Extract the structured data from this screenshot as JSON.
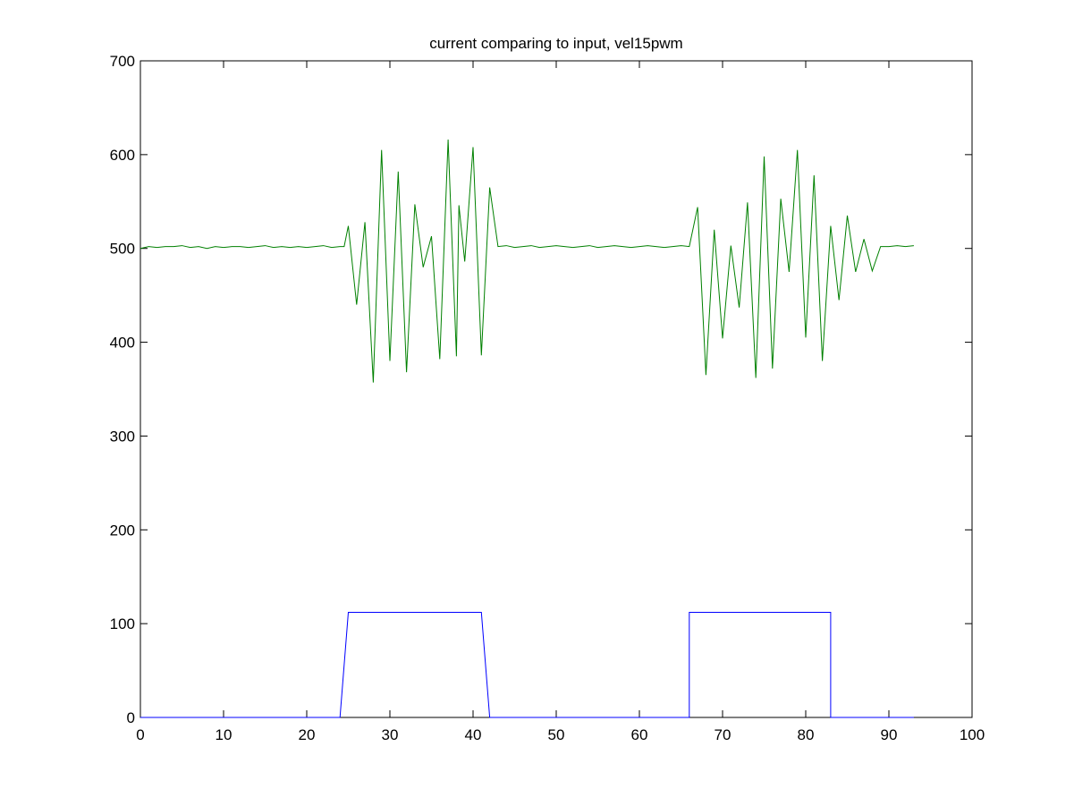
{
  "chart_data": {
    "type": "line",
    "title": "current comparing to input, vel15pwm",
    "xlabel": "",
    "ylabel": "",
    "xlim": [
      0,
      100
    ],
    "ylim": [
      0,
      700
    ],
    "x_ticks": [
      0,
      10,
      20,
      30,
      40,
      50,
      60,
      70,
      80,
      90,
      100
    ],
    "y_ticks": [
      0,
      100,
      200,
      300,
      400,
      500,
      600,
      700
    ],
    "grid": false,
    "legend": "none",
    "series": [
      {
        "color": "#008000",
        "x": [
          0,
          1,
          2,
          3,
          4,
          5,
          6,
          7,
          8,
          9,
          10,
          11,
          12,
          13,
          14,
          15,
          16,
          17,
          18,
          19,
          20,
          21,
          22,
          23,
          24,
          24.5,
          25,
          26,
          27,
          28,
          29,
          30,
          31,
          32,
          33,
          34,
          35,
          36,
          37,
          38,
          38.3,
          39,
          40,
          41,
          42,
          43,
          44,
          45,
          46,
          47,
          48,
          49,
          50,
          51,
          52,
          53,
          54,
          55,
          56,
          57,
          58,
          59,
          60,
          61,
          62,
          63,
          64,
          65,
          66,
          67,
          68,
          69,
          70,
          71,
          72,
          73,
          74,
          75,
          76,
          77,
          78,
          79,
          80,
          81,
          82,
          83,
          84,
          85,
          86,
          87,
          88,
          89,
          90,
          91,
          92,
          93
        ],
        "y": [
          500,
          502,
          501,
          502,
          502,
          503,
          501,
          502,
          500,
          502,
          501,
          502,
          502,
          501,
          502,
          503,
          501,
          502,
          501,
          502,
          501,
          502,
          503,
          501,
          502,
          502,
          524,
          440,
          528,
          357,
          605,
          380,
          582,
          368,
          547,
          480,
          513,
          382,
          616,
          385,
          546,
          486,
          608,
          386,
          565,
          502,
          503,
          501,
          502,
          503,
          501,
          502,
          503,
          502,
          501,
          502,
          503,
          501,
          502,
          503,
          502,
          501,
          502,
          503,
          502,
          501,
          502,
          503,
          502,
          544,
          365,
          520,
          404,
          503,
          437,
          549,
          362,
          598,
          372,
          553,
          475,
          605,
          405,
          578,
          380,
          524,
          445,
          535,
          475,
          510,
          476,
          502,
          502,
          503,
          502,
          503
        ]
      },
      {
        "color": "#0000ff",
        "x": [
          0,
          24,
          25,
          41,
          42,
          66,
          66,
          83,
          83,
          93
        ],
        "y": [
          0,
          0,
          112,
          112,
          0,
          0,
          112,
          112,
          0,
          0
        ]
      }
    ]
  }
}
